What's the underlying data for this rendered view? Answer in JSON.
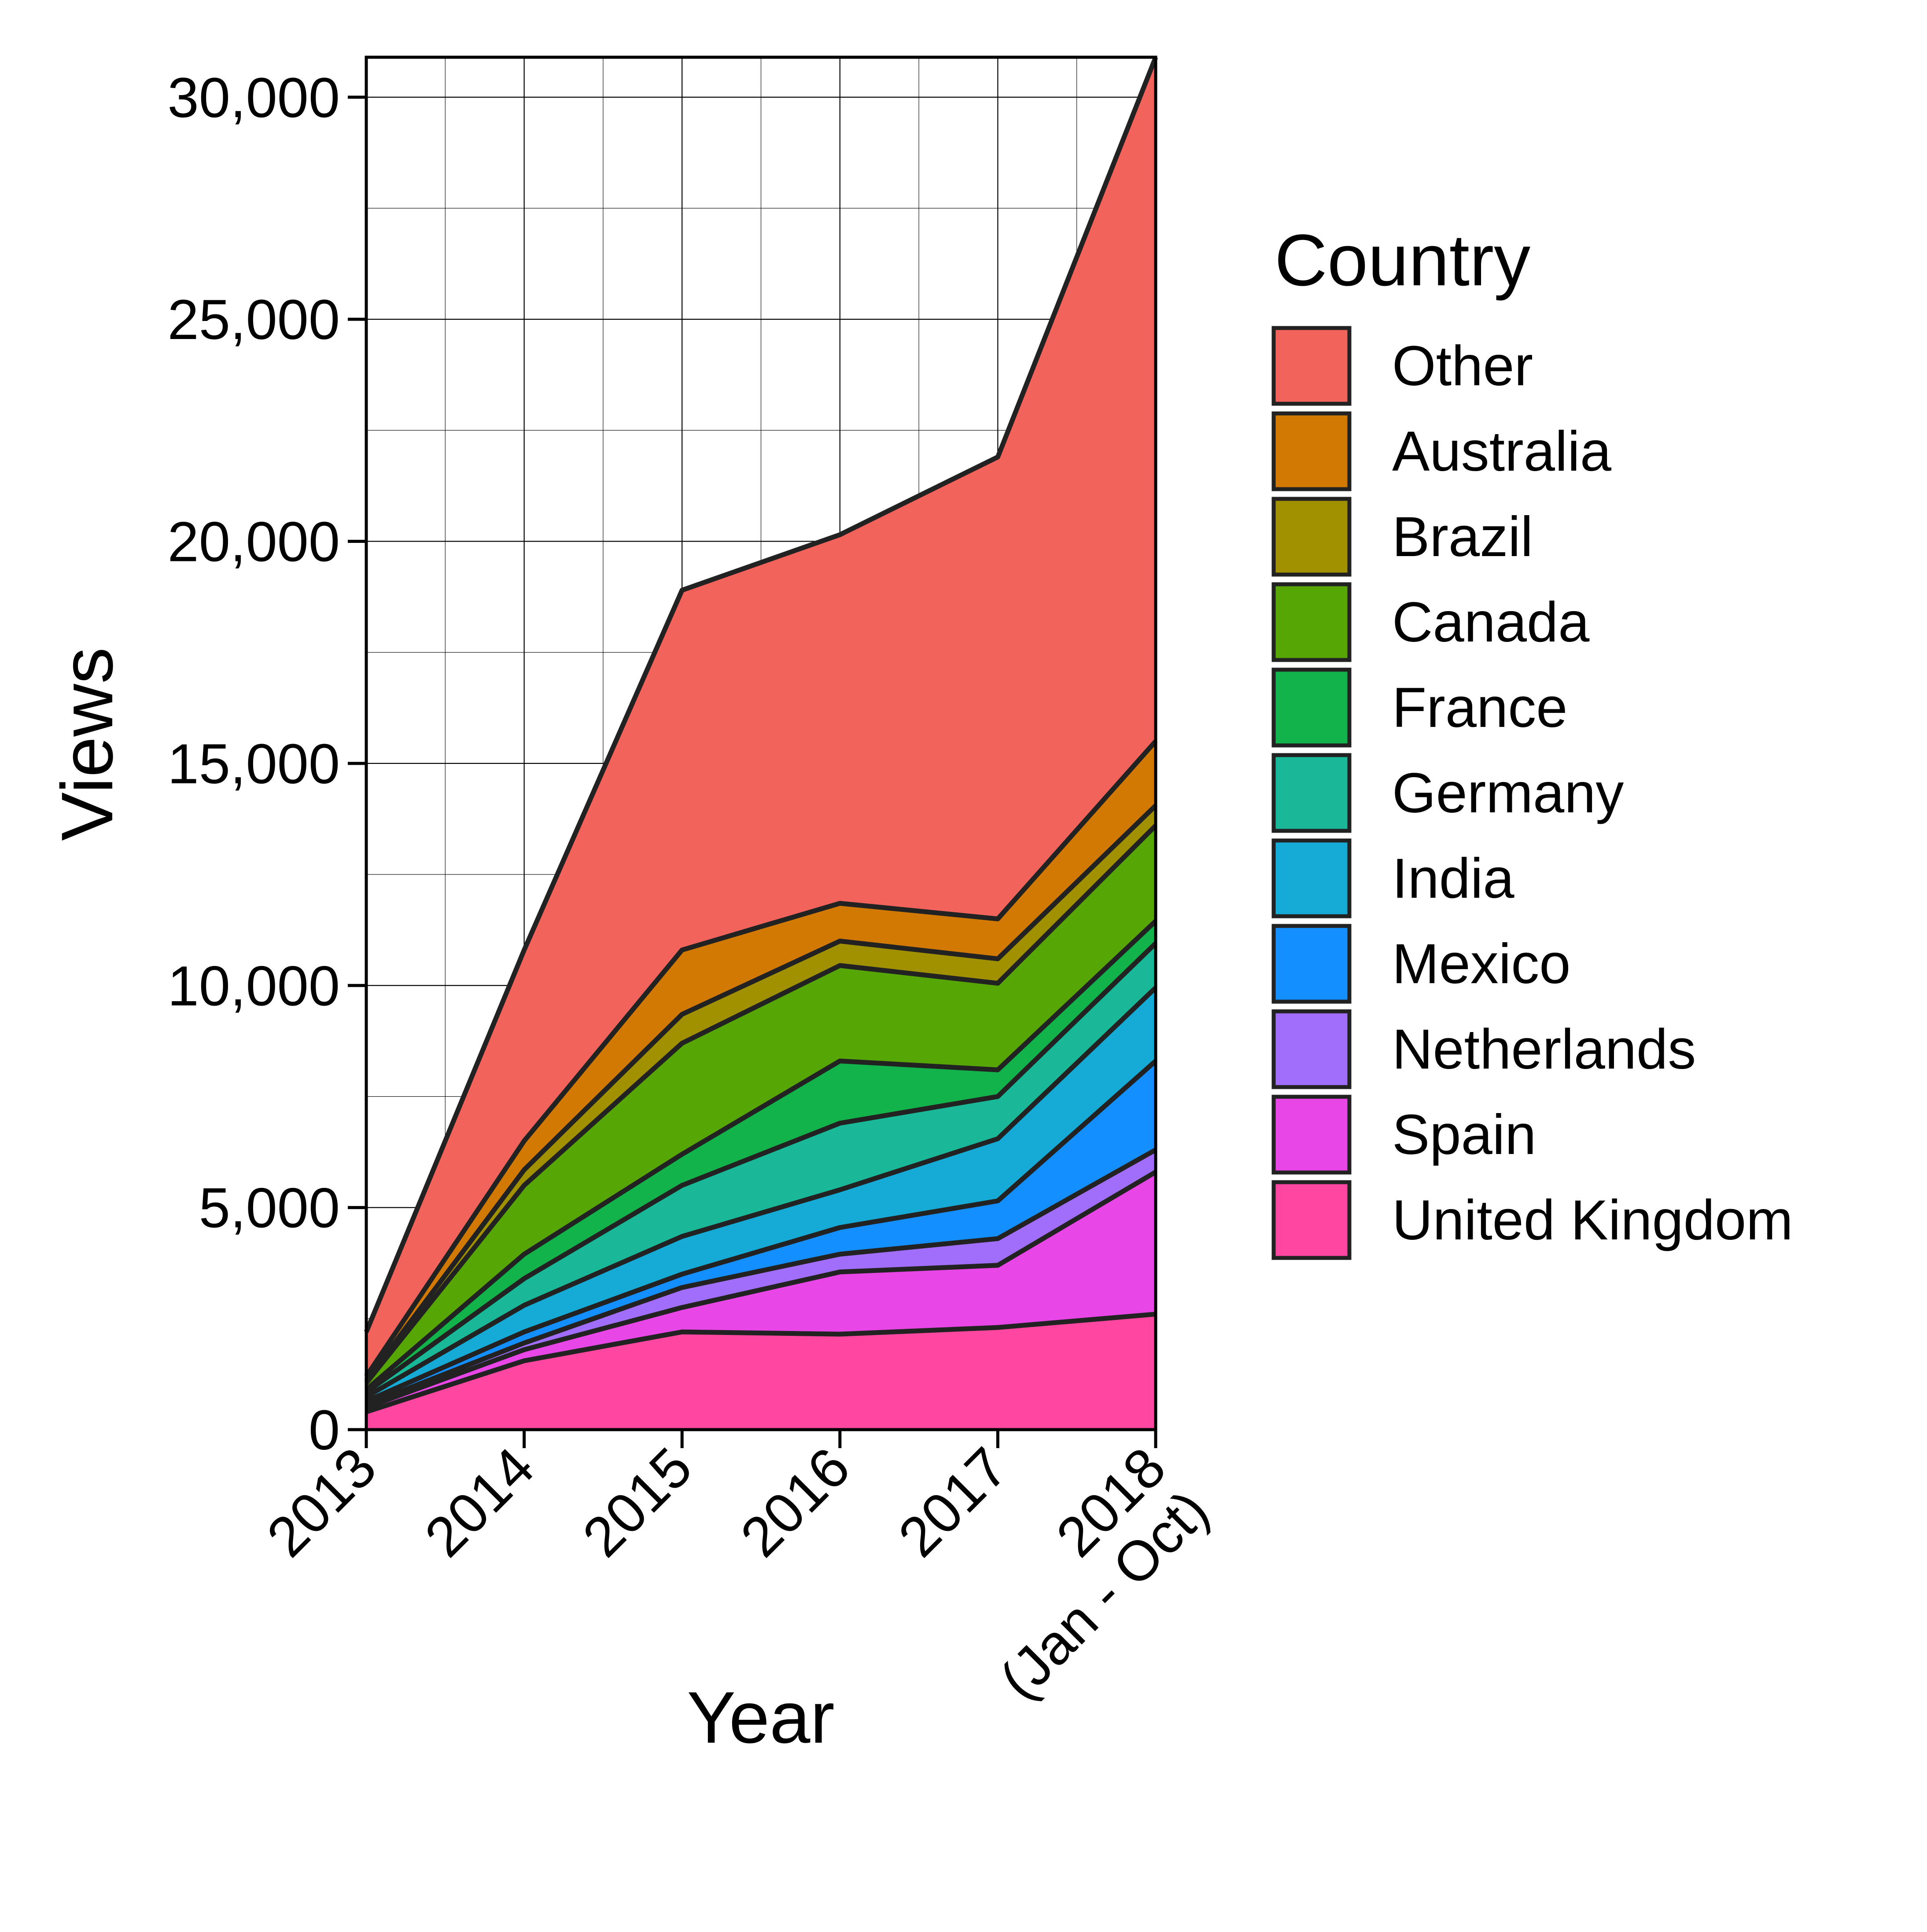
{
  "chart_data": {
    "type": "area",
    "stacked": true,
    "categories": [
      "2013",
      "2014",
      "2015",
      "2016",
      "2017",
      "2018\n(Jan - Oct)"
    ],
    "xlabel": "Year",
    "ylabel": "Views",
    "ylim": [
      0,
      30900
    ],
    "yticks": [
      0,
      5000,
      10000,
      15000,
      20000,
      25000,
      30000
    ],
    "ytick_labels": [
      "0",
      "5,000",
      "10,000",
      "15,000",
      "20,000",
      "25,000",
      "30,000"
    ],
    "grid": true,
    "legend_title": "Country",
    "legend_position": "right",
    "series": [
      {
        "name": "United Kingdom",
        "color": "#FF47A2",
        "values": [
          400,
          1550,
          2200,
          2150,
          2300,
          2600
        ]
      },
      {
        "name": "Spain",
        "color": "#E846E6",
        "values": [
          100,
          250,
          550,
          1400,
          1400,
          3200
        ]
      },
      {
        "name": "Netherlands",
        "color": "#A06EFB",
        "values": [
          60,
          150,
          450,
          400,
          600,
          500
        ]
      },
      {
        "name": "Mexico",
        "color": "#148FFF",
        "values": [
          80,
          250,
          300,
          600,
          850,
          2000
        ]
      },
      {
        "name": "India",
        "color": "#16AAD6",
        "values": [
          100,
          600,
          850,
          850,
          1400,
          1650
        ]
      },
      {
        "name": "Germany",
        "color": "#19B898",
        "values": [
          100,
          600,
          1150,
          1500,
          950,
          1000
        ]
      },
      {
        "name": "France",
        "color": "#13B34B",
        "values": [
          60,
          550,
          700,
          1400,
          600,
          500
        ]
      },
      {
        "name": "Canada",
        "color": "#56A605",
        "values": [
          150,
          1550,
          2500,
          2150,
          1950,
          2150
        ]
      },
      {
        "name": "Brazil",
        "color": "#A19100",
        "values": [
          50,
          350,
          650,
          550,
          550,
          450
        ]
      },
      {
        "name": "Australia",
        "color": "#D27903",
        "values": [
          100,
          650,
          1450,
          850,
          900,
          1450
        ]
      },
      {
        "name": "Other",
        "color": "#F2635C",
        "values": [
          1000,
          4300,
          8100,
          8300,
          10400,
          15400
        ]
      }
    ]
  }
}
